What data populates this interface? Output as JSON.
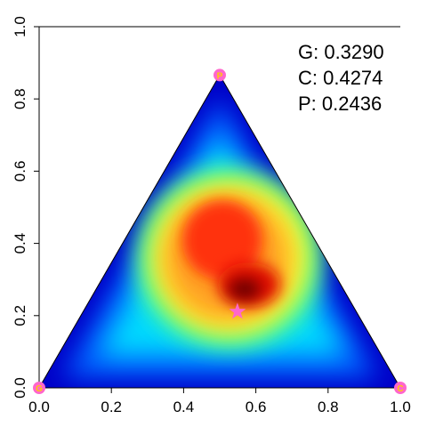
{
  "chart_data": {
    "type": "ternary",
    "xlim": [
      0,
      1
    ],
    "ylim": [
      0,
      1
    ],
    "xticks": [
      {
        "value": 0,
        "label": "0.0"
      },
      0.2,
      0.4,
      0.6,
      0.8,
      {
        "value": 1,
        "label": "1.0"
      }
    ],
    "yticks": [
      {
        "value": 0,
        "label": "0.0"
      },
      0.2,
      0.4,
      0.6,
      0.8,
      {
        "value": 1,
        "label": "1.0"
      }
    ],
    "annotations": [
      "G: 0.3290",
      "C: 0.4274",
      "P: 0.2436"
    ],
    "vertices": [
      {
        "label": "G",
        "x": 0,
        "y": 0
      },
      {
        "label": "C",
        "x": 1,
        "y": 0
      },
      {
        "label": "P",
        "x": 0.5,
        "y": 0.866
      }
    ],
    "vertex_color": "#ff66cc",
    "point": {
      "x": 0.549,
      "y": 0.211,
      "color": "#ff66cc"
    }
  }
}
